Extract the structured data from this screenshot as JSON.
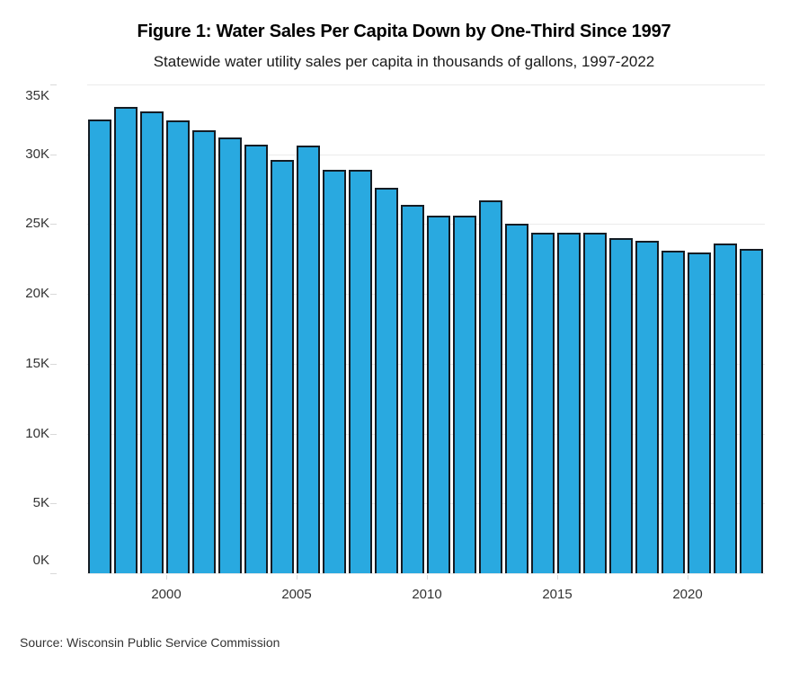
{
  "chart_data": {
    "type": "bar",
    "title": "Figure 1: Water Sales Per Capita Down by One-Third Since 1997",
    "subtitle": "Statewide water utility sales per capita in thousands of gallons, 1997-2022",
    "unit": "thousands of gallons per capita",
    "categories": [
      1997,
      1998,
      1999,
      2000,
      2001,
      2002,
      2003,
      2004,
      2005,
      2006,
      2007,
      2008,
      2009,
      2010,
      2011,
      2012,
      2013,
      2014,
      2015,
      2016,
      2017,
      2018,
      2019,
      2020,
      2021,
      2022
    ],
    "values": [
      32500,
      33400,
      33100,
      32400,
      31700,
      31200,
      30700,
      29600,
      30600,
      28900,
      28900,
      27600,
      26400,
      25600,
      25600,
      26700,
      25000,
      24400,
      24400,
      24400,
      24000,
      23800,
      23100,
      23000,
      23600,
      23200
    ],
    "ylim": [
      0,
      35000
    ],
    "y_tick_labels": [
      "0K",
      "5K",
      "10K",
      "15K",
      "20K",
      "25K",
      "30K",
      "35K"
    ],
    "y_tick_values": [
      0,
      5000,
      10000,
      15000,
      20000,
      25000,
      30000,
      35000
    ],
    "x_tick_years": [
      2000,
      2005,
      2010,
      2015,
      2020
    ],
    "grid": "horizontal light-gray lines, on",
    "legend": "none",
    "bar_fill": "#29a9e0",
    "bar_edge": "#141c24"
  },
  "source": {
    "text": "Source: Wisconsin Public Service Commission"
  }
}
